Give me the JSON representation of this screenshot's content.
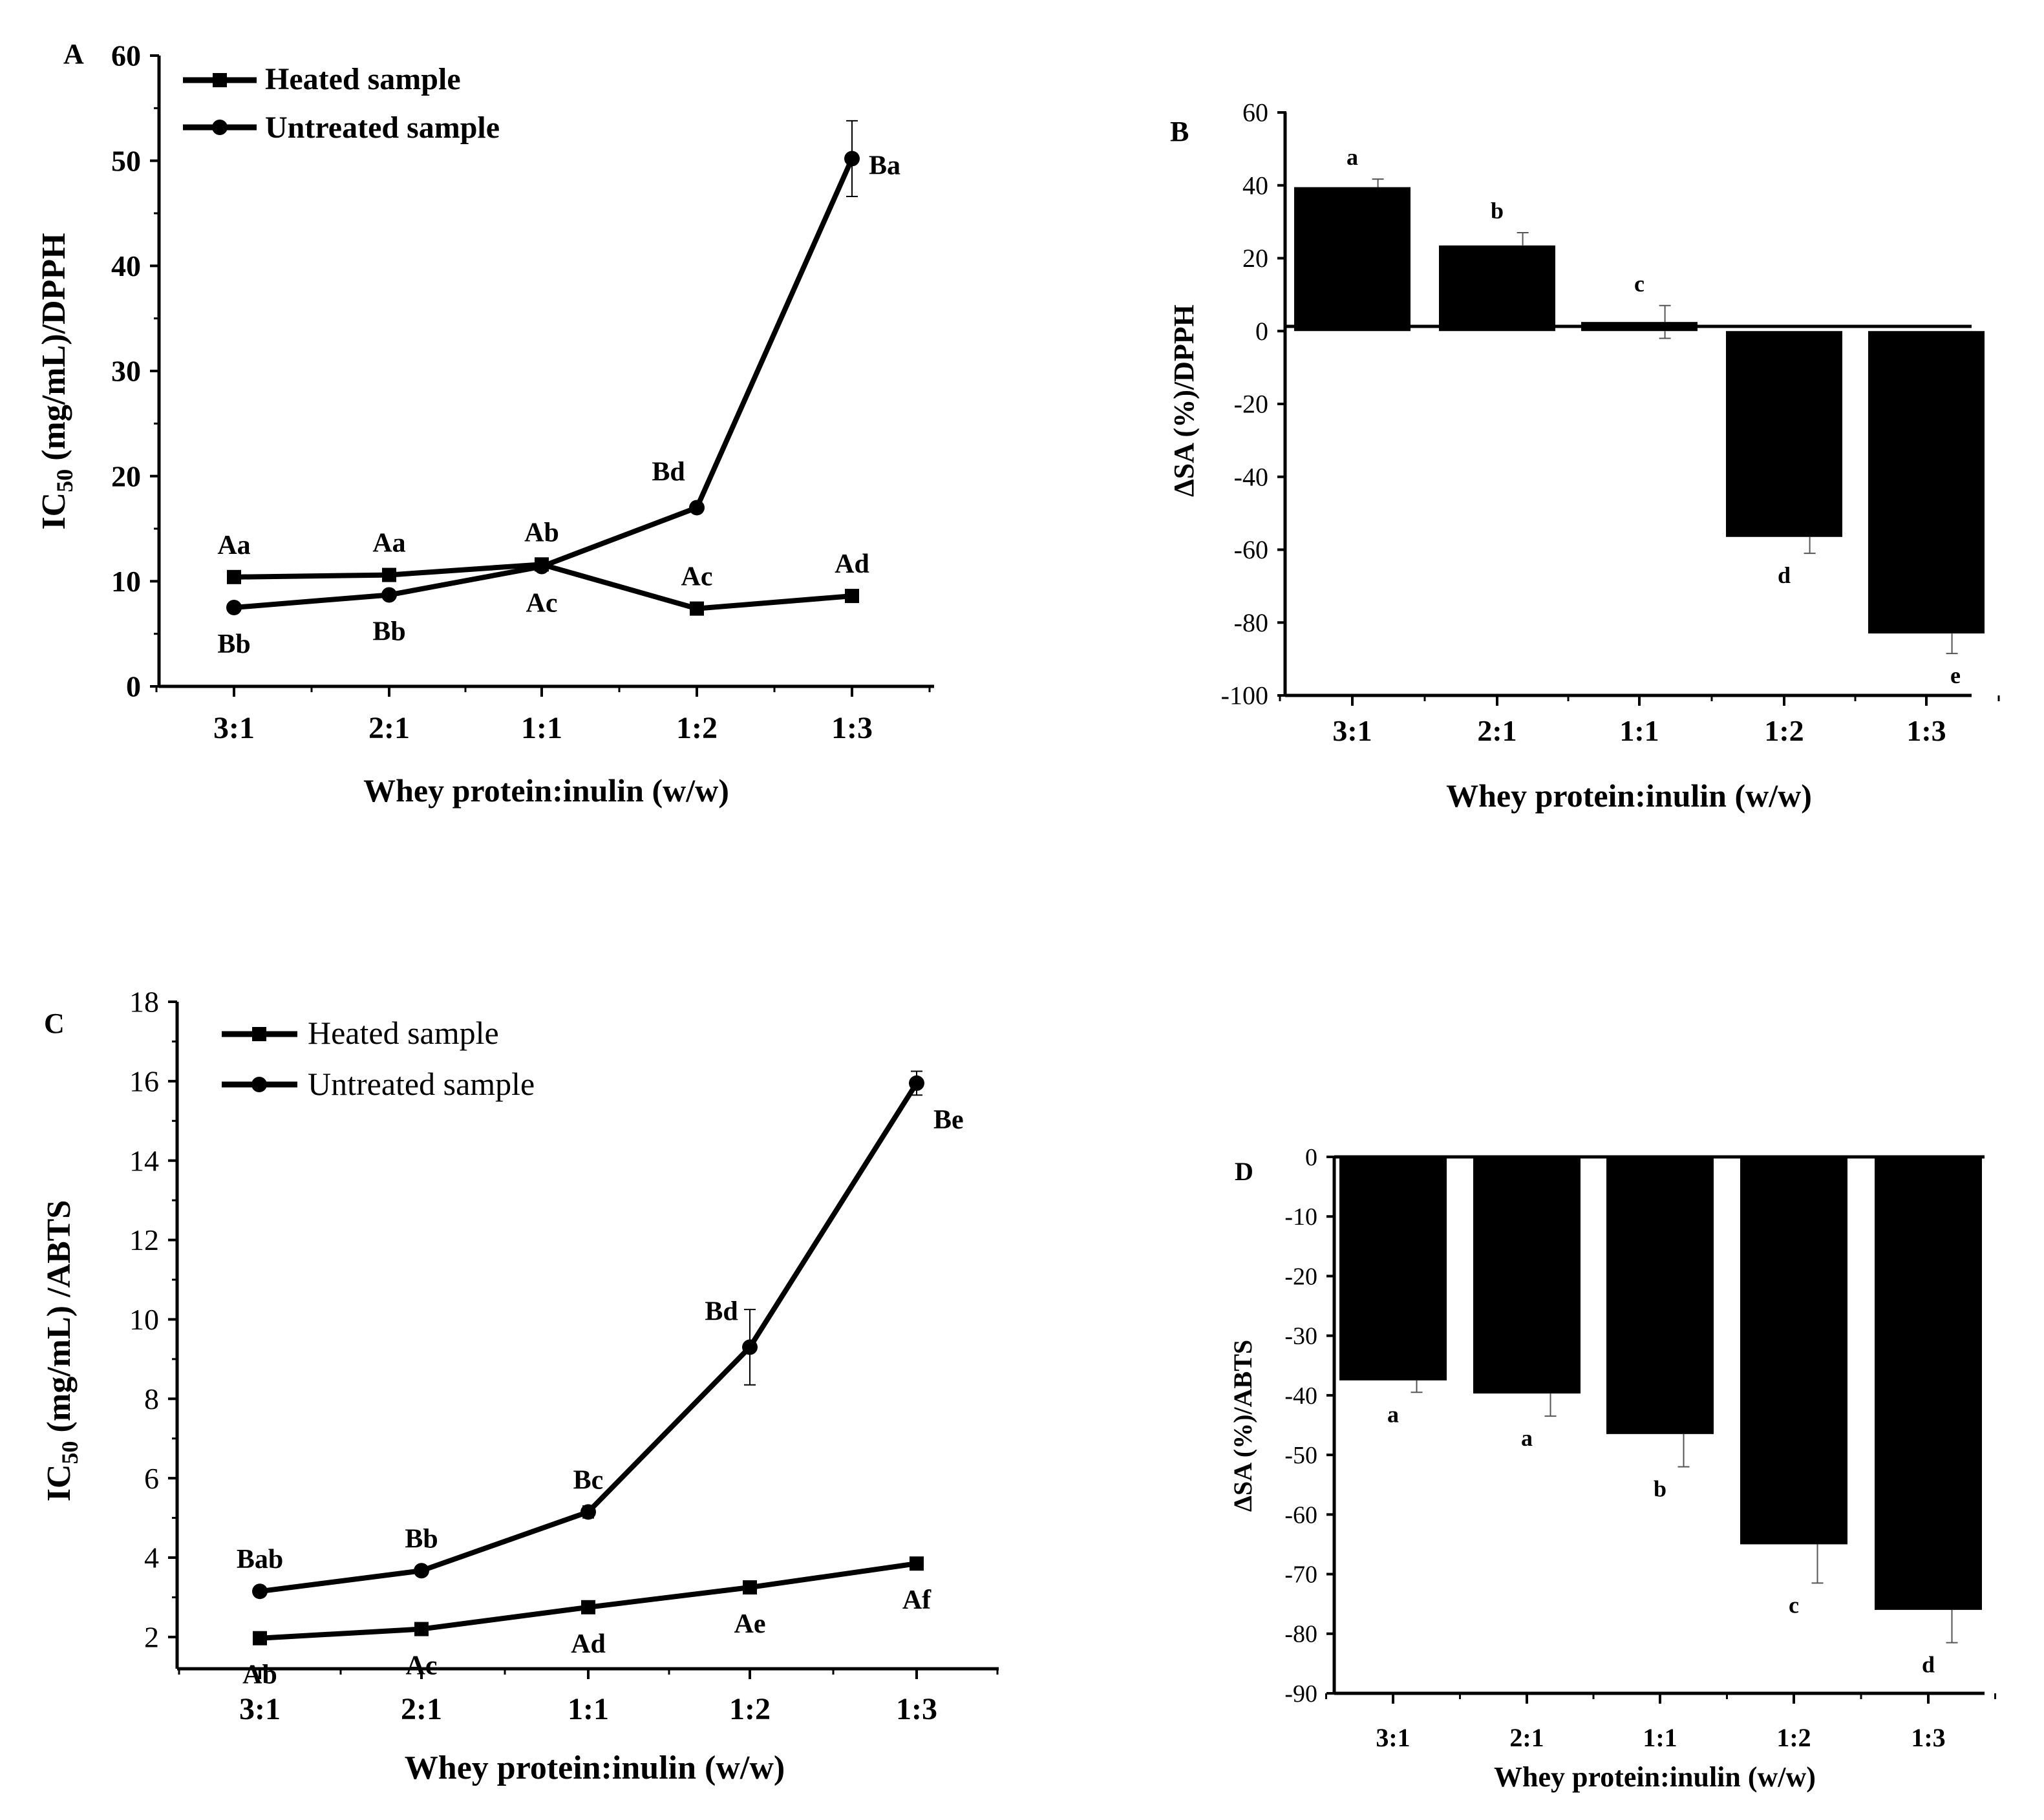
{
  "figure": {
    "panel_letters": [
      "A",
      "B",
      "C",
      "D"
    ]
  },
  "chart_data": [
    {
      "id": "A",
      "type": "line",
      "panel_label": "A",
      "title": "",
      "xlabel": "Whey protein:inulin (w/w)",
      "ylabel_main": "IC",
      "ylabel_sub": "50",
      "ylabel_rest": " (mg/mL)/DPPH",
      "categories": [
        "3:1",
        "2:1",
        "1:1",
        "1:2",
        "1:3"
      ],
      "ylim": [
        0,
        60
      ],
      "yticks": [
        0,
        10,
        20,
        30,
        40,
        50,
        60
      ],
      "legend": {
        "position": "top-left",
        "entries": [
          "Heated sample",
          "Untreated sample"
        ]
      },
      "series": [
        {
          "name": "Heated sample",
          "marker": "square",
          "values": [
            10.4,
            10.6,
            11.6,
            7.4,
            8.6
          ],
          "errors": [
            0.3,
            0.3,
            0.4,
            0.3,
            0.3
          ],
          "labels": [
            "Aa",
            "Aa",
            "Ab",
            "Ac",
            "Ad"
          ],
          "label_pos": [
            "above",
            "above",
            "above",
            "above",
            "above"
          ]
        },
        {
          "name": "Untreated sample",
          "marker": "circle",
          "values": [
            7.5,
            8.7,
            11.4,
            17.0,
            50.2
          ],
          "errors": [
            0.3,
            0.3,
            0.4,
            0.4,
            3.6
          ],
          "labels": [
            "Bb",
            "Bb",
            "Ac",
            "Bd",
            "Ba"
          ],
          "label_pos": [
            "below",
            "below",
            "below",
            "above-left",
            "right"
          ]
        }
      ]
    },
    {
      "id": "B",
      "type": "bar",
      "panel_label": "B",
      "title": "",
      "xlabel": "Whey protein:inulin (w/w)",
      "ylabel": "ΔSA (%)/DPPH",
      "categories": [
        "3:1",
        "2:1",
        "1:1",
        "1:2",
        "1:3"
      ],
      "values": [
        39.5,
        23.5,
        2.5,
        -56.5,
        -83.0
      ],
      "errors": [
        2.2,
        3.5,
        4.5,
        4.5,
        5.5
      ],
      "letters": [
        "a",
        "b",
        "c",
        "d",
        "e"
      ],
      "ylim": [
        -100,
        60
      ],
      "yticks": [
        -100,
        -80,
        -60,
        -40,
        -20,
        0,
        20,
        40,
        60
      ]
    },
    {
      "id": "C",
      "type": "line",
      "panel_label": "C",
      "title": "",
      "xlabel": "Whey protein:inulin (w/w)",
      "ylabel_main": "IC",
      "ylabel_sub": "50",
      "ylabel_rest": " (mg/mL) /ABTS",
      "categories": [
        "3:1",
        "2:1",
        "1:1",
        "1:2",
        "1:3"
      ],
      "ylim": [
        1.2,
        18
      ],
      "yticks": [
        2,
        4,
        6,
        8,
        10,
        12,
        14,
        16,
        18
      ],
      "legend": {
        "position": "top-left",
        "entries": [
          "Heated sample",
          "Untreated sample"
        ]
      },
      "series": [
        {
          "name": "Heated sample",
          "marker": "square",
          "values": [
            1.97,
            2.2,
            2.75,
            3.25,
            3.85
          ],
          "errors": [
            0.05,
            0.05,
            0.06,
            0.06,
            0.07
          ],
          "labels": [
            "Ab",
            "Ac",
            "Ad",
            "Ae",
            "Af"
          ],
          "label_pos": [
            "below",
            "below",
            "below",
            "below",
            "below"
          ]
        },
        {
          "name": "Untreated sample",
          "marker": "circle",
          "values": [
            3.15,
            3.67,
            5.15,
            9.3,
            15.95
          ],
          "errors": [
            0.08,
            0.1,
            0.15,
            0.95,
            0.3
          ],
          "labels": [
            "Bab",
            "Bb",
            "Bc",
            "Bd",
            "Be"
          ],
          "label_pos": [
            "above",
            "above",
            "above",
            "above-left",
            "below-right"
          ]
        }
      ]
    },
    {
      "id": "D",
      "type": "bar",
      "panel_label": "D",
      "title": "",
      "xlabel": "Whey protein:inulin (w/w)",
      "ylabel": "ΔSA (%)/ABTS",
      "categories": [
        "3:1",
        "2:1",
        "1:1",
        "1:2",
        "1:3"
      ],
      "values": [
        -37.5,
        -39.7,
        -46.5,
        -65.0,
        -76.0
      ],
      "errors": [
        2.0,
        3.8,
        5.5,
        6.5,
        5.5
      ],
      "letters": [
        "a",
        "a",
        "b",
        "c",
        "d"
      ],
      "ylim": [
        -90,
        0
      ],
      "yticks": [
        -90,
        -80,
        -70,
        -60,
        -50,
        -40,
        -30,
        -20,
        -10,
        0
      ]
    }
  ]
}
